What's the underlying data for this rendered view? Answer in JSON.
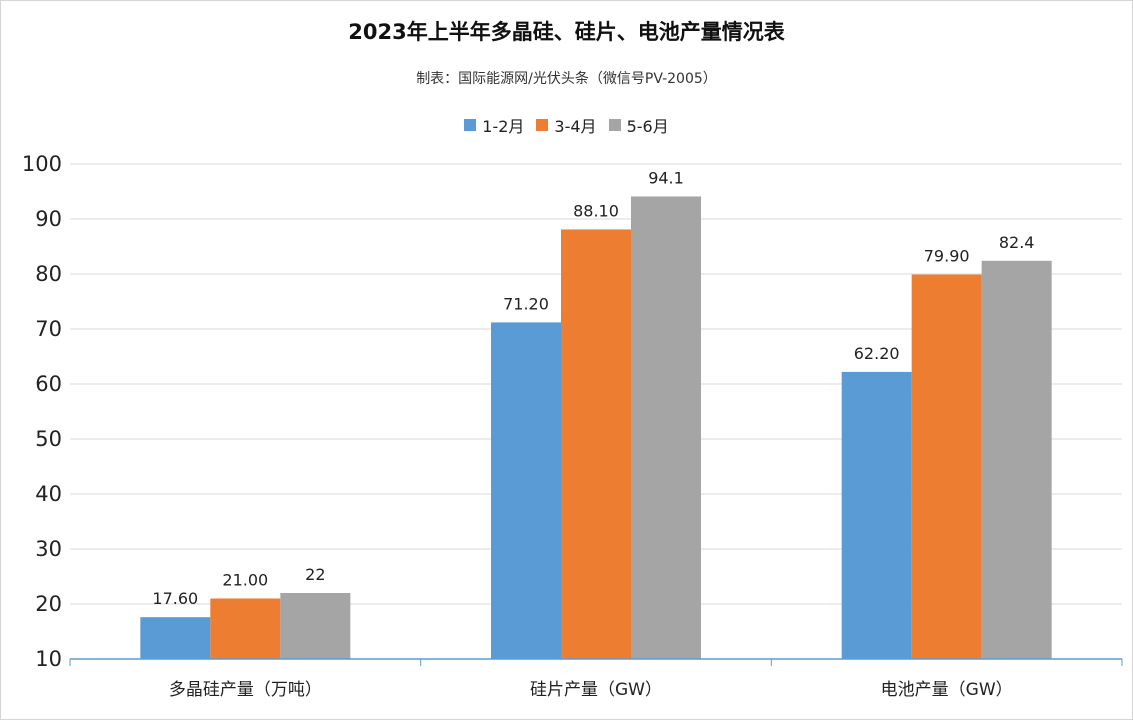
{
  "chart_data": {
    "type": "bar",
    "title": "2023年上半年多晶硅、硅片、电池产量情况表",
    "subtitle": "制表：国际能源网/光伏头条（微信号PV-2005）",
    "categories": [
      "多晶硅产量（万吨）",
      "硅片产量（GW）",
      "电池产量（GW）"
    ],
    "series": [
      {
        "name": "1-2月",
        "color": "#5b9bd5",
        "values": [
          17.6,
          71.2,
          62.2
        ],
        "labels": [
          "17.60",
          "71.20",
          "62.20"
        ]
      },
      {
        "name": "3-4月",
        "color": "#ed7d31",
        "values": [
          21.0,
          88.1,
          79.9
        ],
        "labels": [
          "21.00",
          "88.10",
          "79.90"
        ]
      },
      {
        "name": "5-6月",
        "color": "#a5a5a5",
        "values": [
          22,
          94.1,
          82.4
        ],
        "labels": [
          "22",
          "94.1",
          "82.4"
        ]
      }
    ],
    "ylim": [
      10,
      100
    ],
    "yticks": [
      10,
      20,
      30,
      40,
      50,
      60,
      70,
      80,
      90,
      100
    ],
    "gridlines": true,
    "legend_position": "top"
  }
}
